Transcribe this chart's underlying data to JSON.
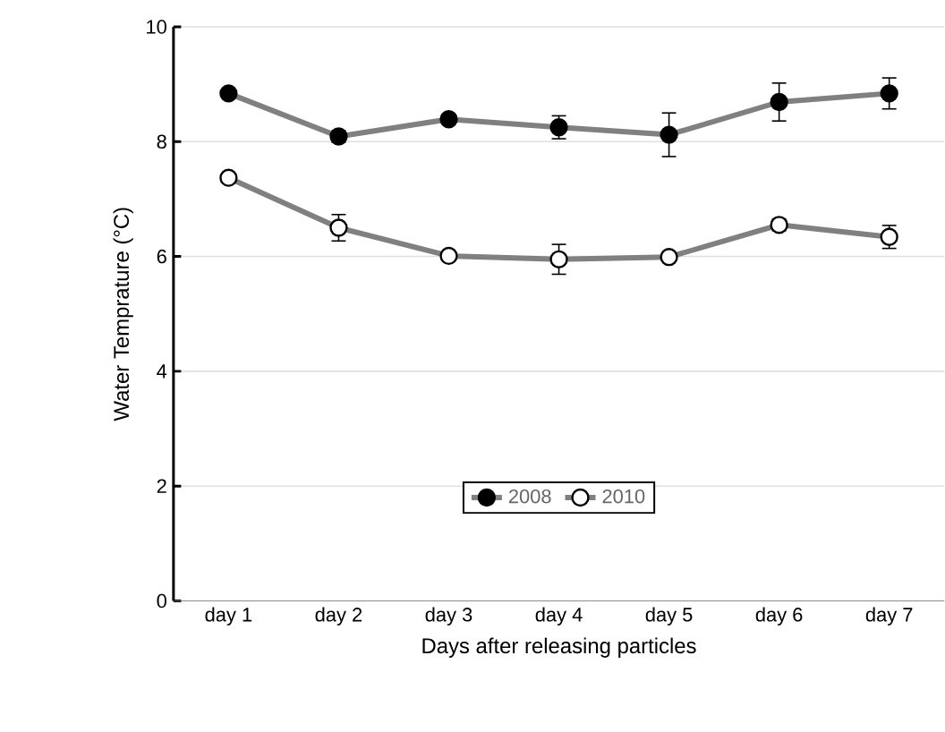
{
  "chart_data": {
    "type": "line",
    "xlabel": "Days after releasing particles",
    "ylabel": "Water  Temprature  (°C)",
    "categories": [
      "day 1",
      "day 2",
      "day 3",
      "day 4",
      "day 5",
      "day 6",
      "day 7"
    ],
    "series": [
      {
        "name": "2008",
        "color": "#808080",
        "colors": [
          "#000000",
          "#000000",
          "#000000",
          "#000000",
          "#000000",
          "#000000",
          "#000000"
        ],
        "values": [
          8.84,
          8.09,
          8.39,
          8.25,
          8.12,
          8.69,
          8.84
        ],
        "errors": [
          0.05,
          0.1,
          0.08,
          0.2,
          0.38,
          0.33,
          0.27
        ]
      },
      {
        "name": "2010",
        "color": "#808080",
        "colors": [
          "#ffffff",
          "#ffffff",
          "#ffffff",
          "#ffffff",
          "#ffffff",
          "#ffffff",
          "#ffffff"
        ],
        "values": [
          7.37,
          6.5,
          6.01,
          5.95,
          5.99,
          6.55,
          6.34
        ],
        "errors": [
          0.05,
          0.23,
          0.05,
          0.26,
          0.05,
          0.1,
          0.2
        ]
      }
    ],
    "ylim": [
      0,
      10
    ],
    "yticks": [
      0,
      2,
      4,
      6,
      8,
      10
    ],
    "grid": "y",
    "legend": "bottom",
    "marker": "circle",
    "line_style": "solid"
  }
}
